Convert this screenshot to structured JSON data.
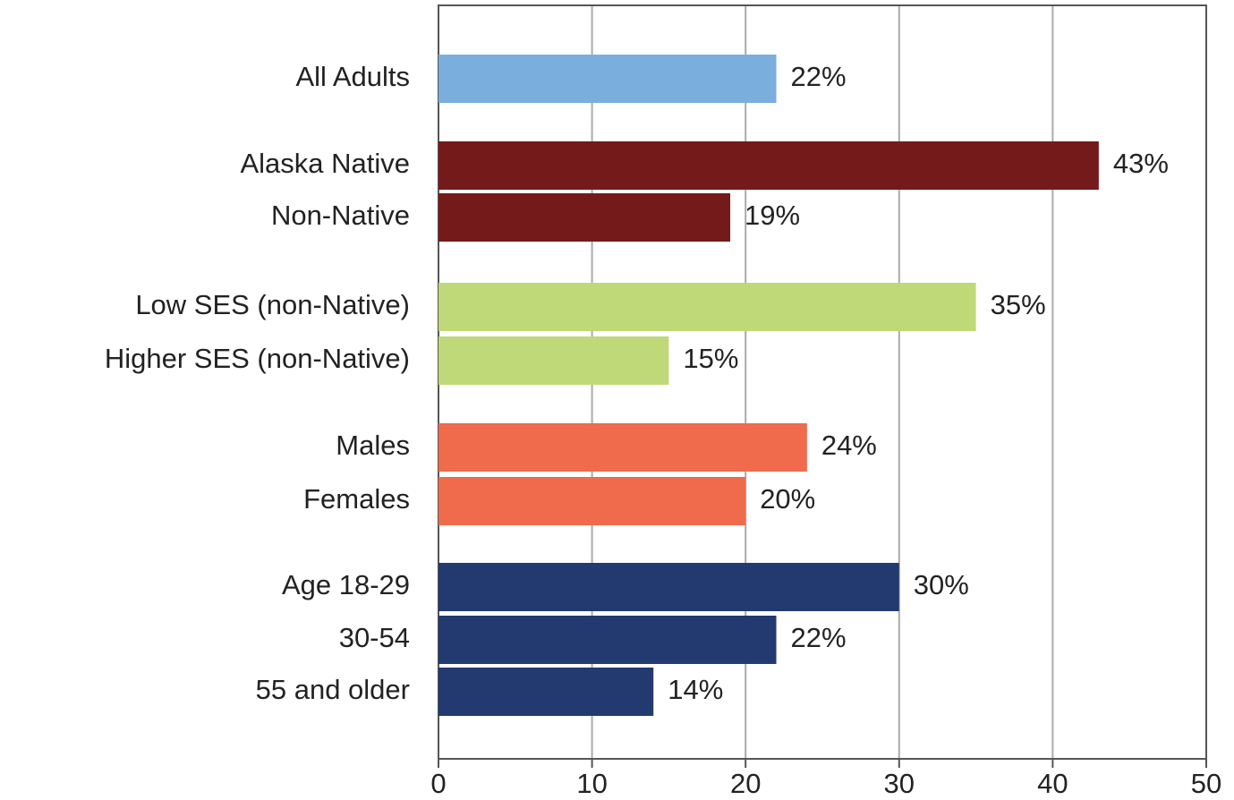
{
  "chart_data": {
    "type": "bar",
    "orientation": "horizontal",
    "categories": [
      "All Adults",
      "Alaska Native",
      "Non-Native",
      "Low SES (non-Native)",
      "Higher SES (non-Native)",
      "Males",
      "Females",
      "Age 18-29",
      "30-54",
      "55 and older"
    ],
    "values": [
      22,
      43,
      19,
      35,
      15,
      24,
      20,
      30,
      22,
      14
    ],
    "value_labels": [
      "22%",
      "43%",
      "19%",
      "35%",
      "15%",
      "24%",
      "20%",
      "30%",
      "22%",
      "14%"
    ],
    "colors": [
      "#7aaedc",
      "#751a1a",
      "#751a1a",
      "#c0d978",
      "#c0d978",
      "#ef6b4c",
      "#ef6b4c",
      "#233a70",
      "#233a70",
      "#233a70"
    ],
    "xlim": [
      0,
      50
    ],
    "xticks": [
      0,
      10,
      20,
      30,
      40,
      50
    ],
    "grid": true
  }
}
